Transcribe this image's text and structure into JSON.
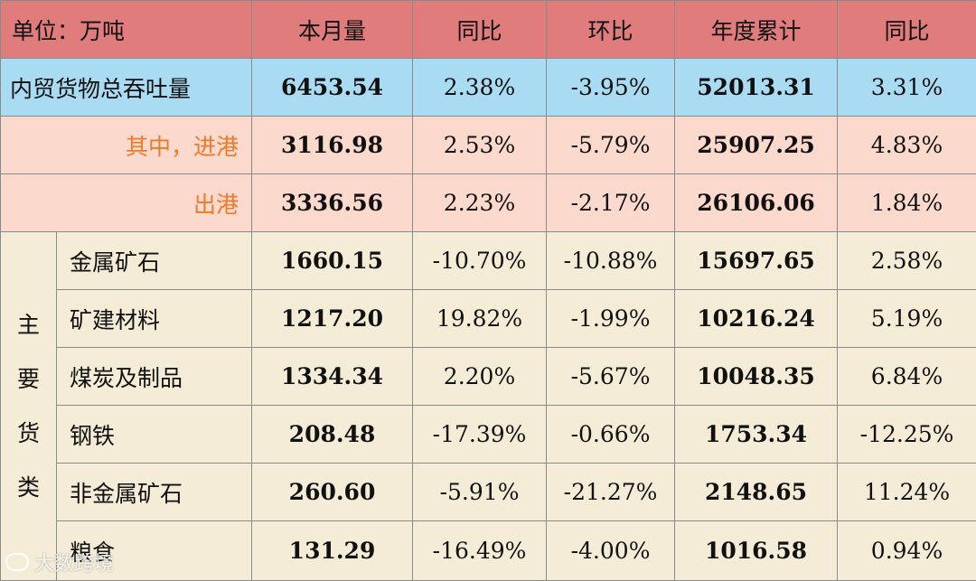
{
  "header": {
    "unit": "单位：万吨",
    "cols": [
      "本月量",
      "同比",
      "环比",
      "年度累计",
      "同比"
    ]
  },
  "total": {
    "label": "内贸货物总吞吐量",
    "values": [
      "6453.54",
      "2.38%",
      "-3.95%",
      "52013.31",
      "3.31%"
    ]
  },
  "inbound": {
    "label": "其中，进港",
    "values": [
      "3116.98",
      "2.53%",
      "-5.79%",
      "25907.25",
      "4.83%"
    ]
  },
  "outbound": {
    "label": "出港",
    "values": [
      "3336.56",
      "2.23%",
      "-2.17%",
      "26106.06",
      "1.84%"
    ]
  },
  "category_label": [
    "主",
    "要",
    "货",
    "类"
  ],
  "cargo_rows": [
    {
      "name": "金属矿石",
      "values": [
        "1660.15",
        "-10.70%",
        "-10.88%",
        "15697.65",
        "2.58%"
      ]
    },
    {
      "name": "矿建材料",
      "values": [
        "1217.20",
        "19.82%",
        "-1.99%",
        "10216.24",
        "5.19%"
      ]
    },
    {
      "name": "煤炭及制品",
      "values": [
        "1334.34",
        "2.20%",
        "-5.67%",
        "10048.35",
        "6.84%"
      ]
    },
    {
      "name": "钢铁",
      "values": [
        "208.48",
        "-17.39%",
        "-0.66%",
        "1753.34",
        "-12.25%"
      ]
    },
    {
      "name": "非金属矿石",
      "values": [
        "260.60",
        "-5.91%",
        "-21.27%",
        "2148.65",
        "11.24%"
      ]
    },
    {
      "name": "粮食",
      "values": [
        "131.29",
        "-16.49%",
        "-4.00%",
        "1016.58",
        "0.94%"
      ]
    }
  ],
  "watermark": "大数跨境",
  "colors": {
    "header": "#e07c7c",
    "total": "#a9dcf2",
    "sub": "#fbd9cc",
    "sub_text": "#ef7a2a",
    "cargo": "#f4ecd6",
    "border": "#8a8a8a"
  }
}
